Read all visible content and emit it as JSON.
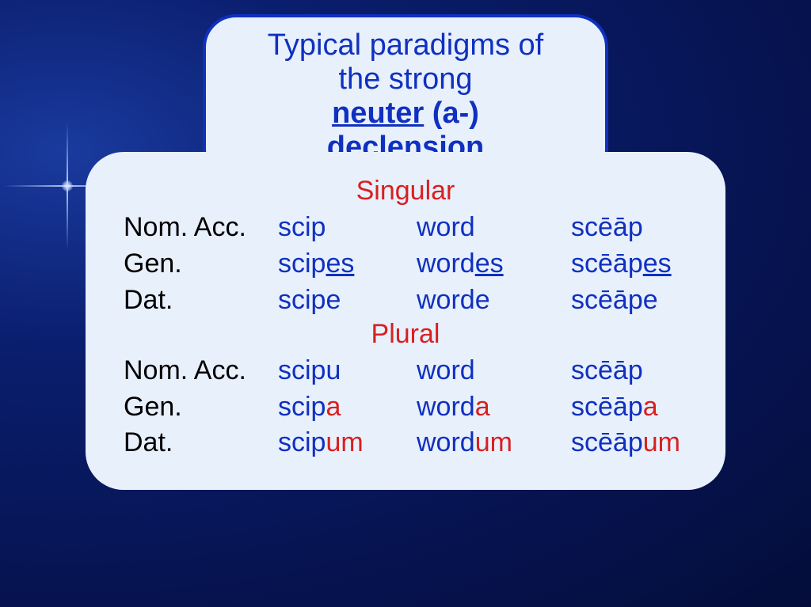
{
  "title": {
    "line1": "Typical paradigms of the strong",
    "line2_under": "neuter",
    "line2_rest": " (a-) declension"
  },
  "sections": {
    "singular": "Singular",
    "plural": "Plural"
  },
  "cases": {
    "nomacc": "Nom. Acc.",
    "gen": "Gen.",
    "dat": "Dat."
  },
  "singular": {
    "nomacc": {
      "c1": {
        "stem": "scip",
        "suf": ""
      },
      "c2": {
        "stem": "word",
        "suf": ""
      },
      "c3": {
        "stem": "scēāp",
        "suf": ""
      }
    },
    "gen": {
      "c1": {
        "stem": "scip",
        "suf": "es"
      },
      "c2": {
        "stem": "word",
        "suf": "es"
      },
      "c3": {
        "stem": "scēāp",
        "suf": "es"
      }
    },
    "dat": {
      "c1": {
        "stem": "scip",
        "suf": "e"
      },
      "c2": {
        "stem": "word",
        "suf": "e"
      },
      "c3": {
        "stem": "scēāp",
        "suf": "e"
      }
    }
  },
  "plural": {
    "nomacc": {
      "c1": {
        "stem": "scipu",
        "suf": ""
      },
      "c2": {
        "stem": "word",
        "suf": ""
      },
      "c3": {
        "stem": "scēāp",
        "suf": ""
      }
    },
    "gen": {
      "c1": {
        "stem": "scip",
        "suf": "a"
      },
      "c2": {
        "stem": "word",
        "suf": "a"
      },
      "c3": {
        "stem": "scēāp",
        "suf": "a"
      }
    },
    "dat": {
      "c1": {
        "stem": "scip",
        "suf": "um"
      },
      "c2": {
        "stem": "word",
        "suf": "um"
      },
      "c3": {
        "stem": "scēāp",
        "suf": "um"
      }
    }
  },
  "colors": {
    "background_deep": "#040d3a",
    "panel_bg": "#e8f0fc",
    "border_blue": "#1030c0",
    "text_blue": "#1030c0",
    "text_red": "#d82020",
    "text_black": "#000000"
  },
  "typography": {
    "title_fontsize": 38,
    "body_fontsize": 34,
    "font_family": "Verdana"
  }
}
